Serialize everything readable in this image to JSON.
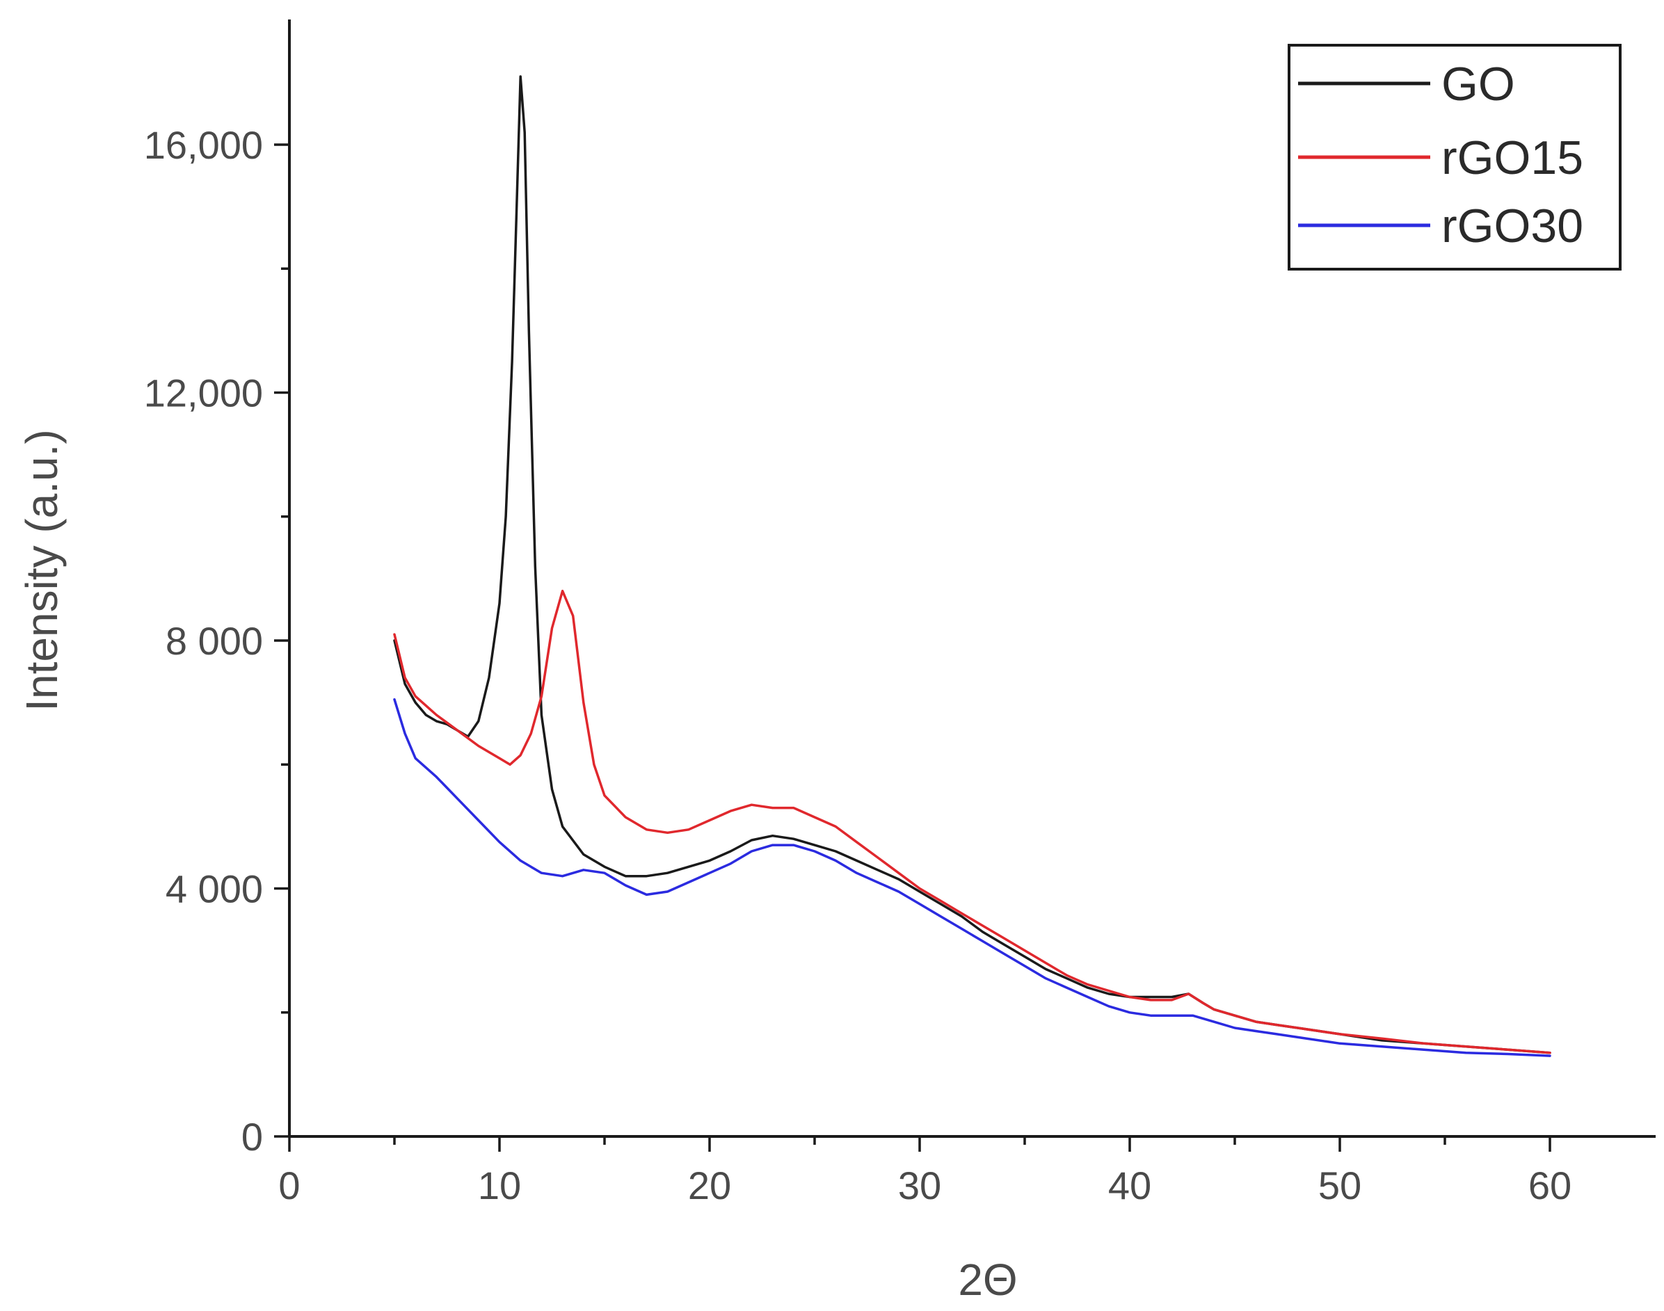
{
  "chart_data": {
    "type": "line",
    "xlabel": "2Θ",
    "ylabel": "Intensity (a.u.)",
    "xlim": [
      0,
      65
    ],
    "ylim": [
      0,
      18000
    ],
    "x_ticks": [
      {
        "value": 0,
        "label": "0"
      },
      {
        "value": 10,
        "label": "10"
      },
      {
        "value": 20,
        "label": "20"
      },
      {
        "value": 30,
        "label": "30"
      },
      {
        "value": 40,
        "label": "40"
      },
      {
        "value": 50,
        "label": "50"
      },
      {
        "value": 60,
        "label": "60"
      }
    ],
    "y_ticks": [
      {
        "value": 0,
        "label": "0"
      },
      {
        "value": 4000,
        "label": "4 000"
      },
      {
        "value": 8000,
        "label": "8 000"
      },
      {
        "value": 12000,
        "label": "12,000"
      },
      {
        "value": 16000,
        "label": "16,000"
      }
    ],
    "legend_position": "top-right",
    "series": [
      {
        "name": "GO",
        "color": "#1a1a1a",
        "points": [
          [
            5,
            8000
          ],
          [
            5.5,
            7300
          ],
          [
            6,
            7000
          ],
          [
            6.5,
            6800
          ],
          [
            7,
            6700
          ],
          [
            7.5,
            6650
          ],
          [
            8,
            6550
          ],
          [
            8.5,
            6450
          ],
          [
            9,
            6700
          ],
          [
            9.5,
            7400
          ],
          [
            10,
            8600
          ],
          [
            10.3,
            10000
          ],
          [
            10.6,
            12500
          ],
          [
            10.8,
            14800
          ],
          [
            11,
            17100
          ],
          [
            11.2,
            16200
          ],
          [
            11.4,
            13000
          ],
          [
            11.7,
            9200
          ],
          [
            12,
            6800
          ],
          [
            12.5,
            5600
          ],
          [
            13,
            5000
          ],
          [
            14,
            4550
          ],
          [
            15,
            4350
          ],
          [
            16,
            4200
          ],
          [
            17,
            4200
          ],
          [
            18,
            4250
          ],
          [
            19,
            4350
          ],
          [
            20,
            4450
          ],
          [
            21,
            4600
          ],
          [
            22,
            4780
          ],
          [
            23,
            4850
          ],
          [
            24,
            4800
          ],
          [
            25,
            4700
          ],
          [
            26,
            4600
          ],
          [
            27,
            4450
          ],
          [
            28,
            4300
          ],
          [
            29,
            4150
          ],
          [
            30,
            3950
          ],
          [
            31,
            3750
          ],
          [
            32,
            3550
          ],
          [
            33,
            3300
          ],
          [
            34,
            3100
          ],
          [
            35,
            2900
          ],
          [
            36,
            2700
          ],
          [
            37,
            2550
          ],
          [
            38,
            2400
          ],
          [
            39,
            2300
          ],
          [
            40,
            2250
          ],
          [
            41,
            2250
          ],
          [
            42,
            2250
          ],
          [
            42.8,
            2300
          ],
          [
            43.5,
            2150
          ],
          [
            44,
            2050
          ],
          [
            45,
            1950
          ],
          [
            46,
            1850
          ],
          [
            47,
            1800
          ],
          [
            48,
            1750
          ],
          [
            50,
            1650
          ],
          [
            52,
            1550
          ],
          [
            54,
            1500
          ],
          [
            56,
            1450
          ],
          [
            58,
            1400
          ],
          [
            60,
            1350
          ]
        ]
      },
      {
        "name": "rGO15",
        "color": "#e0282d",
        "points": [
          [
            5,
            8100
          ],
          [
            5.5,
            7400
          ],
          [
            6,
            7100
          ],
          [
            6.5,
            6950
          ],
          [
            7,
            6800
          ],
          [
            8,
            6550
          ],
          [
            9,
            6300
          ],
          [
            10,
            6100
          ],
          [
            10.5,
            6000
          ],
          [
            11,
            6150
          ],
          [
            11.5,
            6500
          ],
          [
            12,
            7100
          ],
          [
            12.5,
            8200
          ],
          [
            13,
            8800
          ],
          [
            13.5,
            8400
          ],
          [
            14,
            7000
          ],
          [
            14.5,
            6000
          ],
          [
            15,
            5500
          ],
          [
            16,
            5150
          ],
          [
            17,
            4950
          ],
          [
            18,
            4900
          ],
          [
            19,
            4950
          ],
          [
            20,
            5100
          ],
          [
            21,
            5250
          ],
          [
            22,
            5350
          ],
          [
            23,
            5300
          ],
          [
            24,
            5300
          ],
          [
            25,
            5150
          ],
          [
            26,
            5000
          ],
          [
            27,
            4750
          ],
          [
            28,
            4500
          ],
          [
            29,
            4250
          ],
          [
            30,
            4000
          ],
          [
            31,
            3800
          ],
          [
            32,
            3600
          ],
          [
            33,
            3400
          ],
          [
            34,
            3200
          ],
          [
            35,
            3000
          ],
          [
            36,
            2800
          ],
          [
            37,
            2600
          ],
          [
            38,
            2450
          ],
          [
            39,
            2350
          ],
          [
            40,
            2250
          ],
          [
            41,
            2200
          ],
          [
            42,
            2200
          ],
          [
            42.8,
            2300
          ],
          [
            43.5,
            2150
          ],
          [
            44,
            2050
          ],
          [
            45,
            1950
          ],
          [
            46,
            1850
          ],
          [
            47,
            1800
          ],
          [
            48,
            1750
          ],
          [
            50,
            1650
          ],
          [
            52,
            1580
          ],
          [
            54,
            1500
          ],
          [
            56,
            1450
          ],
          [
            58,
            1400
          ],
          [
            60,
            1350
          ]
        ]
      },
      {
        "name": "rGO30",
        "color": "#2b2be0",
        "points": [
          [
            5,
            7050
          ],
          [
            5.5,
            6500
          ],
          [
            6,
            6100
          ],
          [
            7,
            5800
          ],
          [
            8,
            5450
          ],
          [
            9,
            5100
          ],
          [
            10,
            4750
          ],
          [
            11,
            4450
          ],
          [
            12,
            4250
          ],
          [
            13,
            4200
          ],
          [
            14,
            4300
          ],
          [
            15,
            4250
          ],
          [
            16,
            4050
          ],
          [
            17,
            3900
          ],
          [
            18,
            3950
          ],
          [
            19,
            4100
          ],
          [
            20,
            4250
          ],
          [
            21,
            4400
          ],
          [
            22,
            4600
          ],
          [
            23,
            4700
          ],
          [
            24,
            4700
          ],
          [
            25,
            4600
          ],
          [
            26,
            4450
          ],
          [
            27,
            4250
          ],
          [
            28,
            4100
          ],
          [
            29,
            3950
          ],
          [
            30,
            3750
          ],
          [
            31,
            3550
          ],
          [
            32,
            3350
          ],
          [
            33,
            3150
          ],
          [
            34,
            2950
          ],
          [
            35,
            2750
          ],
          [
            36,
            2550
          ],
          [
            37,
            2400
          ],
          [
            38,
            2250
          ],
          [
            39,
            2100
          ],
          [
            40,
            2000
          ],
          [
            41,
            1950
          ],
          [
            42,
            1950
          ],
          [
            43,
            1950
          ],
          [
            44,
            1850
          ],
          [
            45,
            1750
          ],
          [
            46,
            1700
          ],
          [
            47,
            1650
          ],
          [
            48,
            1600
          ],
          [
            50,
            1500
          ],
          [
            52,
            1450
          ],
          [
            54,
            1400
          ],
          [
            56,
            1350
          ],
          [
            58,
            1330
          ],
          [
            60,
            1300
          ]
        ]
      }
    ]
  }
}
